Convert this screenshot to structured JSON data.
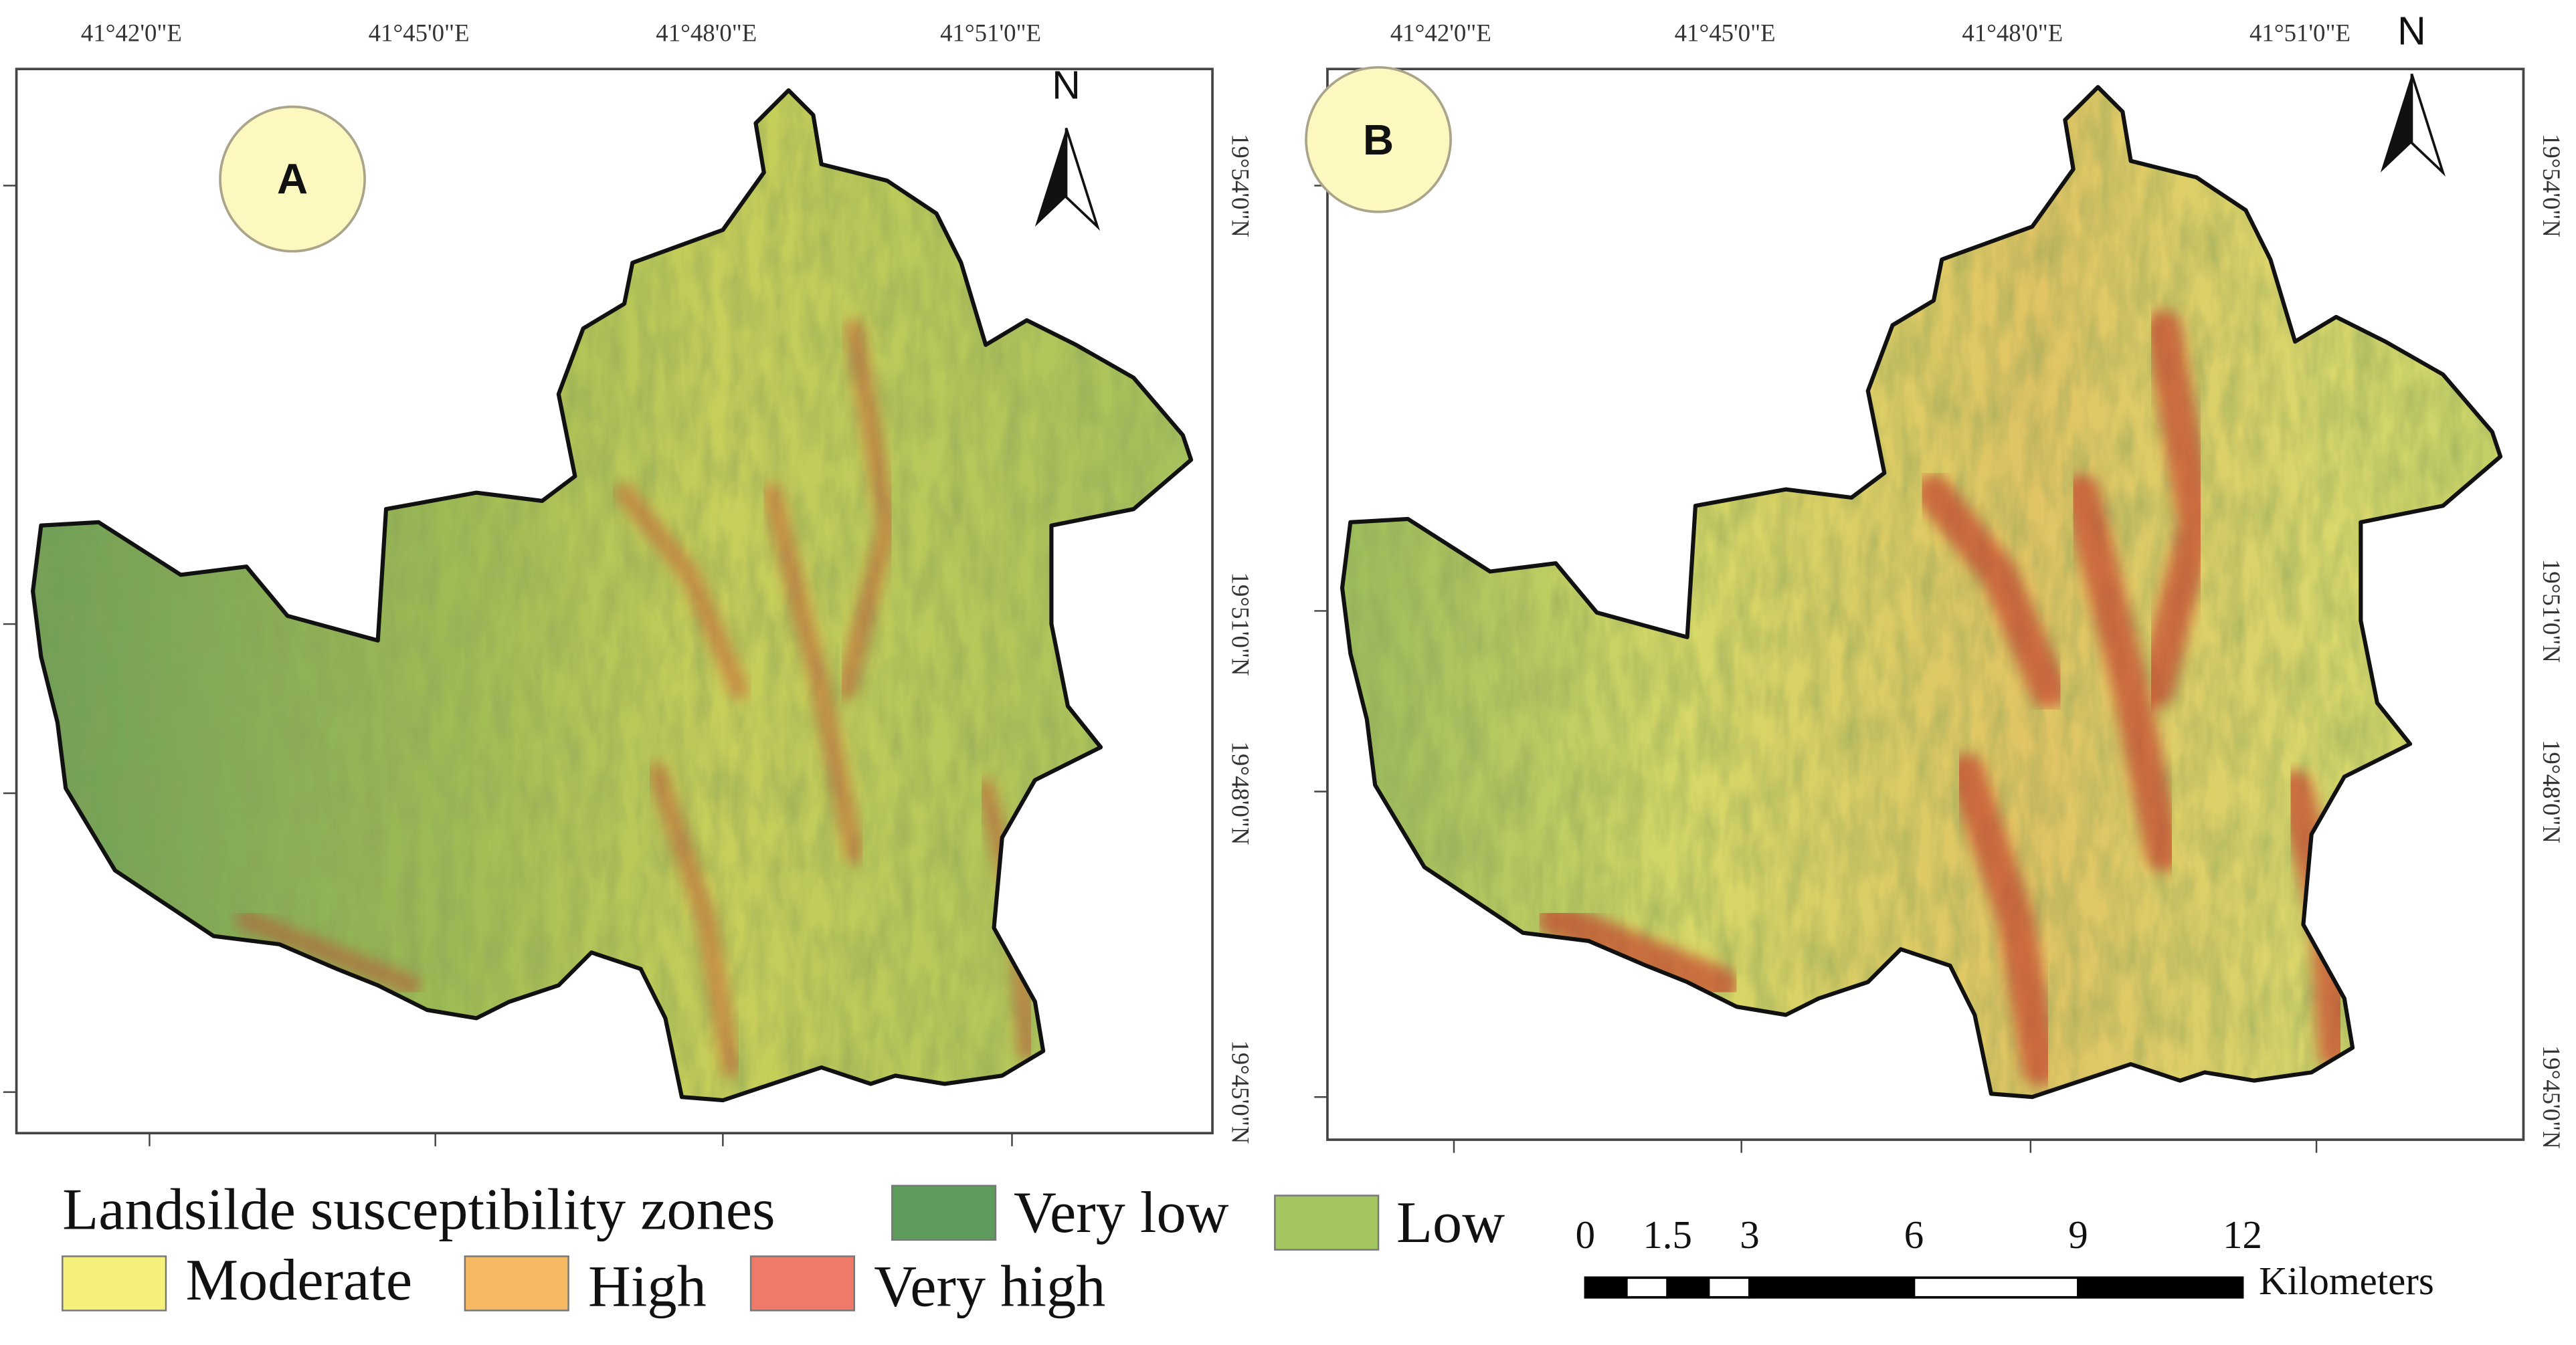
{
  "panels": [
    {
      "label": "A",
      "x_ticks": [
        "41°42'0\"E",
        "41°45'0\"E",
        "41°48'0\"E",
        "41°51'0\"E"
      ],
      "y_ticks": [
        "19°54'0\"N",
        "19°51'0\"N",
        "19°48'0\"N",
        "19°45'0\"N"
      ],
      "north": "N"
    },
    {
      "label": "B",
      "x_ticks": [
        "41°42'0\"E",
        "41°45'0\"E",
        "41°48'0\"E",
        "41°51'0\"E"
      ],
      "y_ticks": [
        "19°54'0\"N",
        "19°51'0\"N",
        "19°48'0\"N",
        "19°45'0\"N"
      ],
      "north": "N"
    }
  ],
  "legend": {
    "title": "Landsilde susceptibility zones",
    "items": [
      {
        "label": "Very low",
        "color": "#5e9a5c"
      },
      {
        "label": "Low",
        "color": "#a4c660"
      },
      {
        "label": "Moderate",
        "color": "#f5f07a"
      },
      {
        "label": "High",
        "color": "#f6b860"
      },
      {
        "label": "Very high",
        "color": "#f07a6a"
      }
    ]
  },
  "scale_bar": {
    "ticks": [
      0,
      1.5,
      3,
      6,
      9,
      12
    ],
    "unit": "Kilometers"
  }
}
